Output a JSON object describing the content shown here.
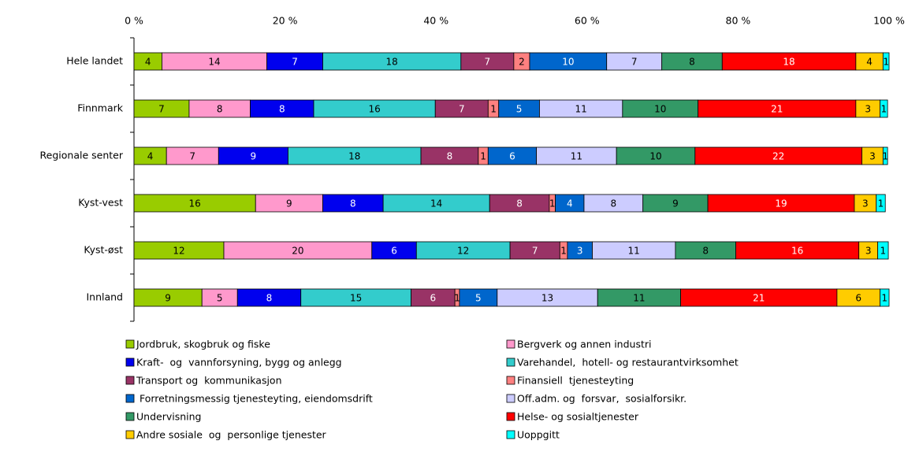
{
  "chart_data": {
    "type": "stacked-bar-horizontal",
    "categories": [
      "Hele landet",
      "Finnmark",
      "Regionale senter",
      "Kyst-vest",
      "Kyst-øst",
      "Innland"
    ],
    "xlim": [
      0,
      100
    ],
    "xticks": [
      {
        "value": 0,
        "label": "0 %"
      },
      {
        "value": 20,
        "label": "20 %"
      },
      {
        "value": 40,
        "label": "40 %"
      },
      {
        "value": 60,
        "label": "60 %"
      },
      {
        "value": 80,
        "label": "80 %"
      },
      {
        "value": 100,
        "label": "100 %"
      }
    ],
    "series": [
      {
        "name": "Jordbruk, skogbruk og fiske",
        "color": "#99cc00",
        "values": [
          3.7,
          7.3,
          4.3,
          16.1,
          11.9,
          9.0
        ],
        "value_labels": [
          "4",
          "7",
          "4",
          "16",
          "12",
          "9"
        ]
      },
      {
        "name": "Bergverk og annen industri",
        "color": "#ff99cc",
        "values": [
          13.9,
          8.1,
          6.9,
          8.9,
          19.6,
          4.7
        ],
        "value_labels": [
          "14",
          "8",
          "7",
          "9",
          "20",
          "5"
        ]
      },
      {
        "name": "Kraft-  og  vannforsyning, bygg og anlegg",
        "color": "#0000ee",
        "values": [
          7.4,
          8.4,
          9.2,
          8.0,
          5.9,
          8.4
        ],
        "value_labels": [
          "7",
          "8",
          "9",
          "8",
          "6",
          "8"
        ]
      },
      {
        "name": "Varehandel,  hotell- og restaurantvirksomhet",
        "color": "#33cccc",
        "values": [
          18.3,
          16.1,
          17.6,
          14.1,
          12.4,
          14.6
        ],
        "value_labels": [
          "18",
          "16",
          "18",
          "14",
          "12",
          "15"
        ]
      },
      {
        "name": "Transport og  kommunikasjon",
        "color": "#993366",
        "values": [
          7.0,
          7.0,
          7.6,
          7.9,
          6.6,
          5.8
        ],
        "value_labels": [
          "7",
          "7",
          "8",
          "8",
          "7",
          "6"
        ]
      },
      {
        "name": "Finansiell  tjenesteyting",
        "color": "#ff8080",
        "values": [
          2.1,
          1.4,
          1.3,
          0.8,
          1.0,
          0.6
        ],
        "value_labels": [
          "2",
          "1",
          "1",
          "1",
          "1",
          "1"
        ]
      },
      {
        "name": " Forretningsmessig tjenesteyting, eiendomsdrift",
        "color": "#0066cc",
        "values": [
          10.2,
          5.4,
          6.4,
          3.8,
          3.3,
          5.0
        ],
        "value_labels": [
          "10",
          "5",
          "6",
          "4",
          "3",
          "5"
        ]
      },
      {
        "name": "Off.adm. og  forsvar,  sosialforsikr.",
        "color": "#ccccff",
        "values": [
          7.3,
          11.0,
          10.6,
          7.8,
          11.0,
          13.3
        ],
        "value_labels": [
          "7",
          "11",
          "11",
          "8",
          "11",
          "13"
        ]
      },
      {
        "name": "Undervisning",
        "color": "#339966",
        "values": [
          8.0,
          10.0,
          10.4,
          8.6,
          8.0,
          11.0
        ],
        "value_labels": [
          "8",
          "10",
          "10",
          "9",
          "8",
          "11"
        ]
      },
      {
        "name": "Helse- og sosialtjenester",
        "color": "#ff0000",
        "values": [
          17.7,
          20.9,
          22.1,
          19.4,
          16.3,
          20.7
        ],
        "value_labels": [
          "18",
          "21",
          "22",
          "19",
          "16",
          "21"
        ]
      },
      {
        "name": "Andre sosiale  og  personlige tjenester",
        "color": "#ffcc00",
        "values": [
          3.6,
          3.2,
          2.8,
          2.9,
          2.5,
          5.7
        ],
        "value_labels": [
          "4",
          "3",
          "3",
          "3",
          "3",
          "6"
        ]
      },
      {
        "name": "Uoppgitt",
        "color": "#00ffff",
        "values": [
          0.8,
          1.0,
          0.6,
          1.2,
          1.4,
          1.2
        ],
        "value_labels": [
          "1",
          "1",
          "1",
          "1",
          "1",
          "1"
        ]
      }
    ]
  }
}
